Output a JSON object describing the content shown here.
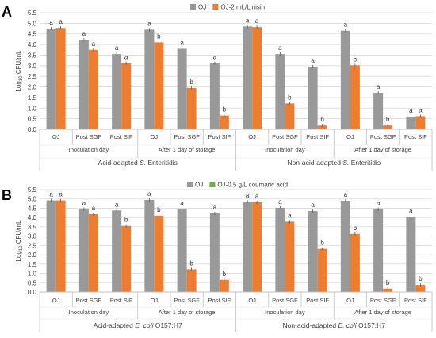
{
  "panels": [
    {
      "panel_label": "A",
      "legend": [
        "OJ",
        "OJ-2 mL/L nisin"
      ],
      "colors": [
        "#999999",
        "#ED7D31"
      ],
      "ylabel": "Log10 CFU/mL",
      "ylabel_main": "Log",
      "ylabel_sub": "10",
      "ylabel_rest": " CFU/mL",
      "ylim": [
        0,
        5.5
      ],
      "yticks": [
        "0.0",
        "0.5",
        "1.0",
        "1.5",
        "2.0",
        "2.5",
        "3.0",
        "3.5",
        "4.0",
        "4.5",
        "5.0",
        "5.5"
      ],
      "categories": [
        "OJ",
        "Post SGF",
        "Post SIF",
        "OJ",
        "Post SGF",
        "Post SIF",
        "OJ",
        "Post SGF",
        "Post SIF",
        "OJ",
        "Post SGF",
        "Post SIF"
      ],
      "day_labels": [
        "Inoculation day",
        "After 1 day of storage",
        "Inoculation day",
        "After 1 day of storage"
      ],
      "group_labels": [
        {
          "pre": "Acid-adapted ",
          "italic": "S.",
          "post": " Enteritidis"
        },
        {
          "pre": "Non-acid-adapted ",
          "italic": "S.",
          "post": " Enteritidis"
        }
      ]
    },
    {
      "panel_label": "B",
      "legend": [
        "OJ",
        "OJ-0.5 g/L coumaric acid"
      ],
      "colors": [
        "#999999",
        "#ED7D31"
      ],
      "legend_colors": [
        "#999999",
        "#70AD47"
      ],
      "ylabel": "Log10 CFU/mL",
      "ylabel_main": "Log",
      "ylabel_sub": "10",
      "ylabel_rest": " CFU/mL",
      "ylim": [
        0,
        5.5
      ],
      "yticks": [
        "0.0",
        "0.5",
        "1.0",
        "1.5",
        "2.0",
        "2.5",
        "3.0",
        "3.5",
        "4.0",
        "4.5",
        "5.0",
        "5.5"
      ],
      "categories": [
        "OJ",
        "Post SGF",
        "Post SIF",
        "OJ",
        "Post SGF",
        "Post SIF",
        "OJ",
        "Post SGF",
        "Post SIF",
        "OJ",
        "Post SGF",
        "Post SIF"
      ],
      "day_labels": [
        "Inoculation day",
        "After 1 day of storage",
        "Inoculation day",
        "After 1 day of storage"
      ],
      "group_labels": [
        {
          "pre": "Acid-adapted ",
          "italic": "E. coli",
          "post": " O157:H7"
        },
        {
          "pre": "Non-acid-adapted ",
          "italic": "E. coli",
          "post": " O157:H7"
        }
      ]
    }
  ],
  "chart_data": [
    {
      "type": "bar",
      "title": "",
      "ylabel": "Log10 CFU/mL",
      "ylim": [
        0,
        5.5
      ],
      "categories": [
        "OJ",
        "Post SGF",
        "Post SIF",
        "OJ",
        "Post SGF",
        "Post SIF",
        "OJ",
        "Post SGF",
        "Post SIF",
        "OJ",
        "Post SGF",
        "Post SIF"
      ],
      "series": [
        {
          "name": "OJ",
          "values": [
            4.75,
            4.22,
            3.55,
            4.7,
            3.8,
            3.12,
            4.85,
            3.55,
            2.95,
            4.65,
            1.72,
            0.6
          ]
        },
        {
          "name": "OJ-2 mL/L nisin",
          "values": [
            4.78,
            3.75,
            3.12,
            4.1,
            1.95,
            0.65,
            4.82,
            1.22,
            0.18,
            3.02,
            0.18,
            0.62
          ]
        }
      ],
      "significance": [
        [
          "a",
          "a"
        ],
        [
          "a",
          "a"
        ],
        [
          "a",
          "a"
        ],
        [
          "a",
          "b"
        ],
        [
          "a",
          "b"
        ],
        [
          "a",
          "b"
        ],
        [
          "a",
          "a"
        ],
        [
          "a",
          "b"
        ],
        [
          "a",
          "b"
        ],
        [
          "a",
          "b"
        ],
        [
          "a",
          "b"
        ],
        [
          "a",
          "a"
        ]
      ],
      "legend_position": "top"
    },
    {
      "type": "bar",
      "title": "",
      "ylabel": "Log10 CFU/mL",
      "ylim": [
        0,
        5.5
      ],
      "categories": [
        "OJ",
        "Post SGF",
        "Post SIF",
        "OJ",
        "Post SGF",
        "Post SIF",
        "OJ",
        "Post SGF",
        "Post SIF",
        "OJ",
        "Post SGF",
        "Post SIF"
      ],
      "series": [
        {
          "name": "OJ",
          "values": [
            4.92,
            4.45,
            4.38,
            4.95,
            4.45,
            4.22,
            4.85,
            4.52,
            4.35,
            4.9,
            4.45,
            4.02
          ]
        },
        {
          "name": "OJ-0.5 g/L coumaric acid",
          "values": [
            4.92,
            4.18,
            3.55,
            4.1,
            1.22,
            0.65,
            4.82,
            3.78,
            2.32,
            3.12,
            0.18,
            0.38
          ]
        }
      ],
      "significance": [
        [
          "a",
          "a"
        ],
        [
          "a",
          "a"
        ],
        [
          "a",
          "b"
        ],
        [
          "a",
          "b"
        ],
        [
          "a",
          "b"
        ],
        [
          "a",
          "b"
        ],
        [
          "a",
          "a"
        ],
        [
          "a",
          "a"
        ],
        [
          "a",
          "b"
        ],
        [
          "a",
          "b"
        ],
        [
          "a",
          "b"
        ],
        [
          "a",
          "b"
        ]
      ],
      "legend_position": "top"
    }
  ]
}
